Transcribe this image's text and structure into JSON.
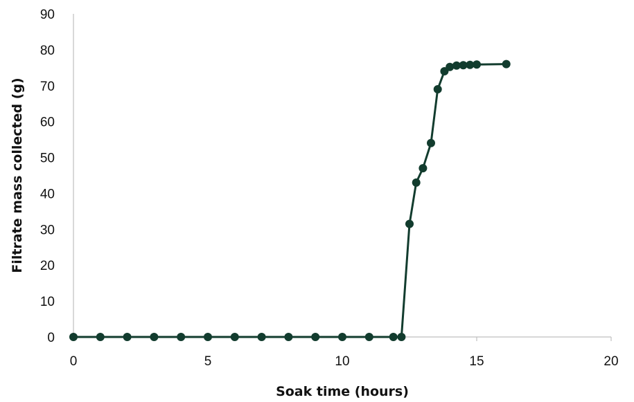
{
  "chart_data": {
    "type": "line",
    "title": "",
    "xlabel": "Soak time (hours)",
    "ylabel": "Filtrate mass collected (g)",
    "xlim": [
      0,
      20
    ],
    "ylim": [
      0,
      90
    ],
    "x_ticks": [
      0,
      5,
      10,
      15,
      20
    ],
    "y_ticks": [
      0,
      10,
      20,
      30,
      40,
      50,
      60,
      70,
      80,
      90
    ],
    "grid": false,
    "legend": "none",
    "series": [
      {
        "color": "#123c2e",
        "markers": true,
        "x": [
          0,
          1,
          2,
          3,
          4,
          5,
          6,
          7,
          8,
          9,
          10,
          11,
          11.9,
          12.2,
          12.5,
          12.75,
          13,
          13.3,
          13.55,
          13.8,
          14,
          14.25,
          14.5,
          14.75,
          15,
          16.1
        ],
        "y": [
          0,
          0,
          0,
          0,
          0,
          0,
          0,
          0,
          0,
          0,
          0,
          0,
          0,
          0,
          31.5,
          43,
          47,
          54,
          69,
          74,
          75.2,
          75.6,
          75.7,
          75.8,
          75.9,
          76
        ]
      }
    ]
  }
}
